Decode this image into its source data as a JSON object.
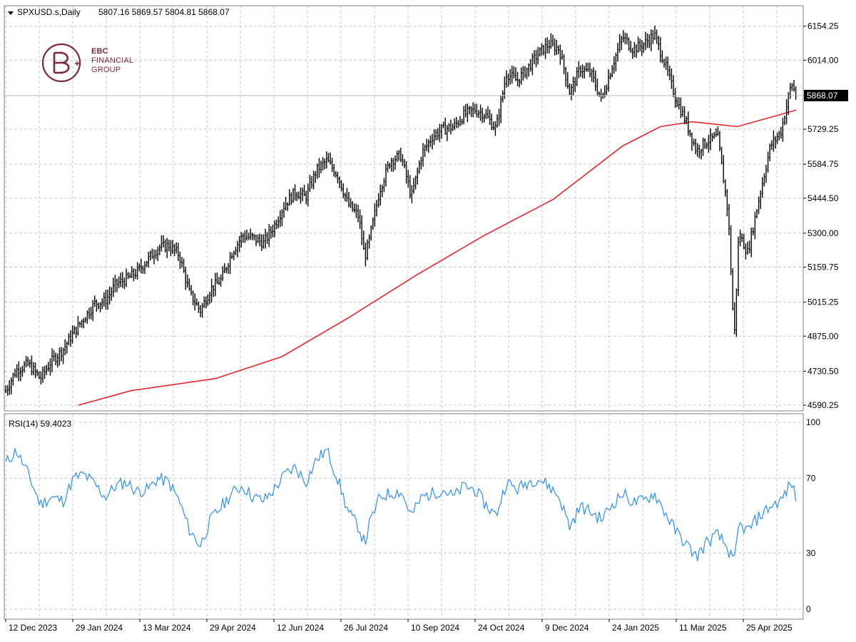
{
  "header": {
    "symbol": "SPXUSD.s,Daily",
    "ohlc": "5807.16 5869.57 5804.81 5868.07"
  },
  "logo": {
    "line1": "EBC",
    "line2": "FINANCIAL",
    "line3": "GROUP",
    "mark": "EBC monogram"
  },
  "price_panel": {
    "y_ticks": [
      "6154.25",
      "6014.00",
      "5868.07",
      "5729.25",
      "5584.75",
      "5444.50",
      "5300.00",
      "5159.75",
      "5015.25",
      "4875.00",
      "4730.50",
      "4590.25"
    ],
    "current_price_label": "5868.07",
    "current_price": 5868.07
  },
  "rsi_panel": {
    "label": "RSI(14) 59.4023",
    "y_ticks": [
      "100",
      "70",
      "30",
      "0"
    ],
    "levels": [
      70,
      30
    ]
  },
  "x_ticks": [
    "12 Dec 2023",
    "29 Jan 2024",
    "13 Mar 2024",
    "29 Apr 2024",
    "12 Jun 2024",
    "26 Jul 2024",
    "10 Sep 2024",
    "24 Oct 2024",
    "9 Dec 2024",
    "24 Jan 2025",
    "11 Mar 2025",
    "25 Apr 2025"
  ],
  "colors": {
    "bars": "#000000",
    "ma": "#e8262b",
    "rsi": "#2d8ff0",
    "grid": "#c8c8c8",
    "current_line": "#c0c0c0"
  },
  "chart_data": [
    {
      "type": "line",
      "title": "SPXUSD.s,Daily",
      "description": "Daily OHLC bars (close approximated) with a long moving average in red",
      "xlim": [
        "12 Dec 2023",
        "19 May 2025"
      ],
      "ylim": [
        4590.25,
        6180
      ],
      "log_scale": false,
      "grid": true,
      "series": [
        {
          "name": "",
          "style": "ohlc-bars",
          "x": [
            "2023-12-12",
            "2023-12-19",
            "2023-12-27",
            "2024-01-04",
            "2024-01-11",
            "2024-01-19",
            "2024-01-26",
            "2024-02-02",
            "2024-02-09",
            "2024-02-16",
            "2024-02-23",
            "2024-03-01",
            "2024-03-08",
            "2024-03-15",
            "2024-03-22",
            "2024-03-29",
            "2024-04-05",
            "2024-04-12",
            "2024-04-19",
            "2024-04-26",
            "2024-05-03",
            "2024-05-10",
            "2024-05-17",
            "2024-05-24",
            "2024-05-31",
            "2024-06-07",
            "2024-06-14",
            "2024-06-21",
            "2024-06-28",
            "2024-07-05",
            "2024-07-12",
            "2024-07-19",
            "2024-07-26",
            "2024-08-02",
            "2024-08-06",
            "2024-08-09",
            "2024-08-16",
            "2024-08-23",
            "2024-08-30",
            "2024-09-06",
            "2024-09-13",
            "2024-09-20",
            "2024-09-27",
            "2024-10-04",
            "2024-10-11",
            "2024-10-18",
            "2024-10-25",
            "2024-11-01",
            "2024-11-08",
            "2024-11-15",
            "2024-11-22",
            "2024-11-29",
            "2024-12-06",
            "2024-12-13",
            "2024-12-20",
            "2024-12-27",
            "2025-01-03",
            "2025-01-10",
            "2025-01-17",
            "2025-01-24",
            "2025-01-31",
            "2025-02-07",
            "2025-02-14",
            "2025-02-21",
            "2025-02-28",
            "2025-03-07",
            "2025-03-14",
            "2025-03-21",
            "2025-03-28",
            "2025-04-04",
            "2025-04-08",
            "2025-04-11",
            "2025-04-17",
            "2025-04-25",
            "2025-05-02",
            "2025-05-09",
            "2025-05-16",
            "2025-05-19"
          ],
          "values": [
            4650,
            4735,
            4760,
            4700,
            4770,
            4820,
            4890,
            4950,
            5010,
            5020,
            5090,
            5110,
            5140,
            5190,
            5240,
            5250,
            5210,
            5050,
            4980,
            5070,
            5110,
            5220,
            5290,
            5280,
            5260,
            5330,
            5420,
            5470,
            5450,
            5560,
            5600,
            5540,
            5420,
            5370,
            5200,
            5270,
            5480,
            5600,
            5620,
            5450,
            5630,
            5700,
            5730,
            5740,
            5790,
            5810,
            5790,
            5730,
            5960,
            5930,
            5980,
            6040,
            6080,
            6060,
            5880,
            5980,
            5960,
            5850,
            5990,
            6110,
            6060,
            6080,
            6120,
            6000,
            5860,
            5760,
            5640,
            5680,
            5700,
            5380,
            4860,
            5300,
            5220,
            5460,
            5660,
            5720,
            5920,
            5868
          ]
        },
        {
          "name": "",
          "style": "line",
          "x": [
            "2024-01-29",
            "2024-03-04",
            "2024-04-29",
            "2024-06-12",
            "2024-07-26",
            "2024-09-10",
            "2024-10-24",
            "2024-12-09",
            "2025-01-24",
            "2025-02-18",
            "2025-03-11",
            "2025-04-10",
            "2025-05-19"
          ],
          "values": [
            4590,
            4650,
            4700,
            4790,
            4950,
            5130,
            5290,
            5440,
            5660,
            5740,
            5760,
            5740,
            5808
          ]
        }
      ],
      "current_value": 5868.07
    },
    {
      "type": "line",
      "title": "RSI(14) 59.4023",
      "ylim": [
        0,
        100
      ],
      "levels": [
        70,
        30
      ],
      "series": [
        {
          "name": "",
          "x": [
            "2023-12-12",
            "2023-12-19",
            "2023-12-27",
            "2024-01-04",
            "2024-01-11",
            "2024-01-19",
            "2024-01-26",
            "2024-02-02",
            "2024-02-09",
            "2024-02-16",
            "2024-02-23",
            "2024-03-01",
            "2024-03-08",
            "2024-03-15",
            "2024-03-22",
            "2024-03-29",
            "2024-04-05",
            "2024-04-12",
            "2024-04-19",
            "2024-04-26",
            "2024-05-03",
            "2024-05-10",
            "2024-05-17",
            "2024-05-24",
            "2024-05-31",
            "2024-06-07",
            "2024-06-14",
            "2024-06-21",
            "2024-06-28",
            "2024-07-05",
            "2024-07-12",
            "2024-07-19",
            "2024-07-26",
            "2024-08-02",
            "2024-08-06",
            "2024-08-09",
            "2024-08-16",
            "2024-08-23",
            "2024-08-30",
            "2024-09-06",
            "2024-09-13",
            "2024-09-20",
            "2024-09-27",
            "2024-10-04",
            "2024-10-11",
            "2024-10-18",
            "2024-10-25",
            "2024-11-01",
            "2024-11-08",
            "2024-11-15",
            "2024-11-22",
            "2024-11-29",
            "2024-12-06",
            "2024-12-13",
            "2024-12-20",
            "2024-12-27",
            "2025-01-03",
            "2025-01-10",
            "2025-01-17",
            "2025-01-24",
            "2025-01-31",
            "2025-02-07",
            "2025-02-14",
            "2025-02-21",
            "2025-02-28",
            "2025-03-07",
            "2025-03-14",
            "2025-03-21",
            "2025-03-28",
            "2025-04-04",
            "2025-04-08",
            "2025-04-11",
            "2025-04-17",
            "2025-04-25",
            "2025-05-02",
            "2025-05-09",
            "2025-05-16",
            "2025-05-19"
          ],
          "values": [
            78,
            85,
            72,
            56,
            60,
            58,
            70,
            72,
            67,
            60,
            66,
            68,
            63,
            64,
            70,
            68,
            58,
            42,
            34,
            48,
            55,
            62,
            66,
            60,
            58,
            64,
            72,
            76,
            68,
            80,
            85,
            70,
            52,
            44,
            35,
            45,
            60,
            62,
            63,
            50,
            60,
            62,
            64,
            60,
            66,
            64,
            56,
            50,
            68,
            64,
            68,
            70,
            66,
            60,
            44,
            55,
            52,
            48,
            56,
            62,
            57,
            58,
            62,
            52,
            42,
            35,
            28,
            36,
            40,
            32,
            24,
            45,
            42,
            50,
            55,
            58,
            68,
            59
          ]
        }
      ]
    }
  ]
}
